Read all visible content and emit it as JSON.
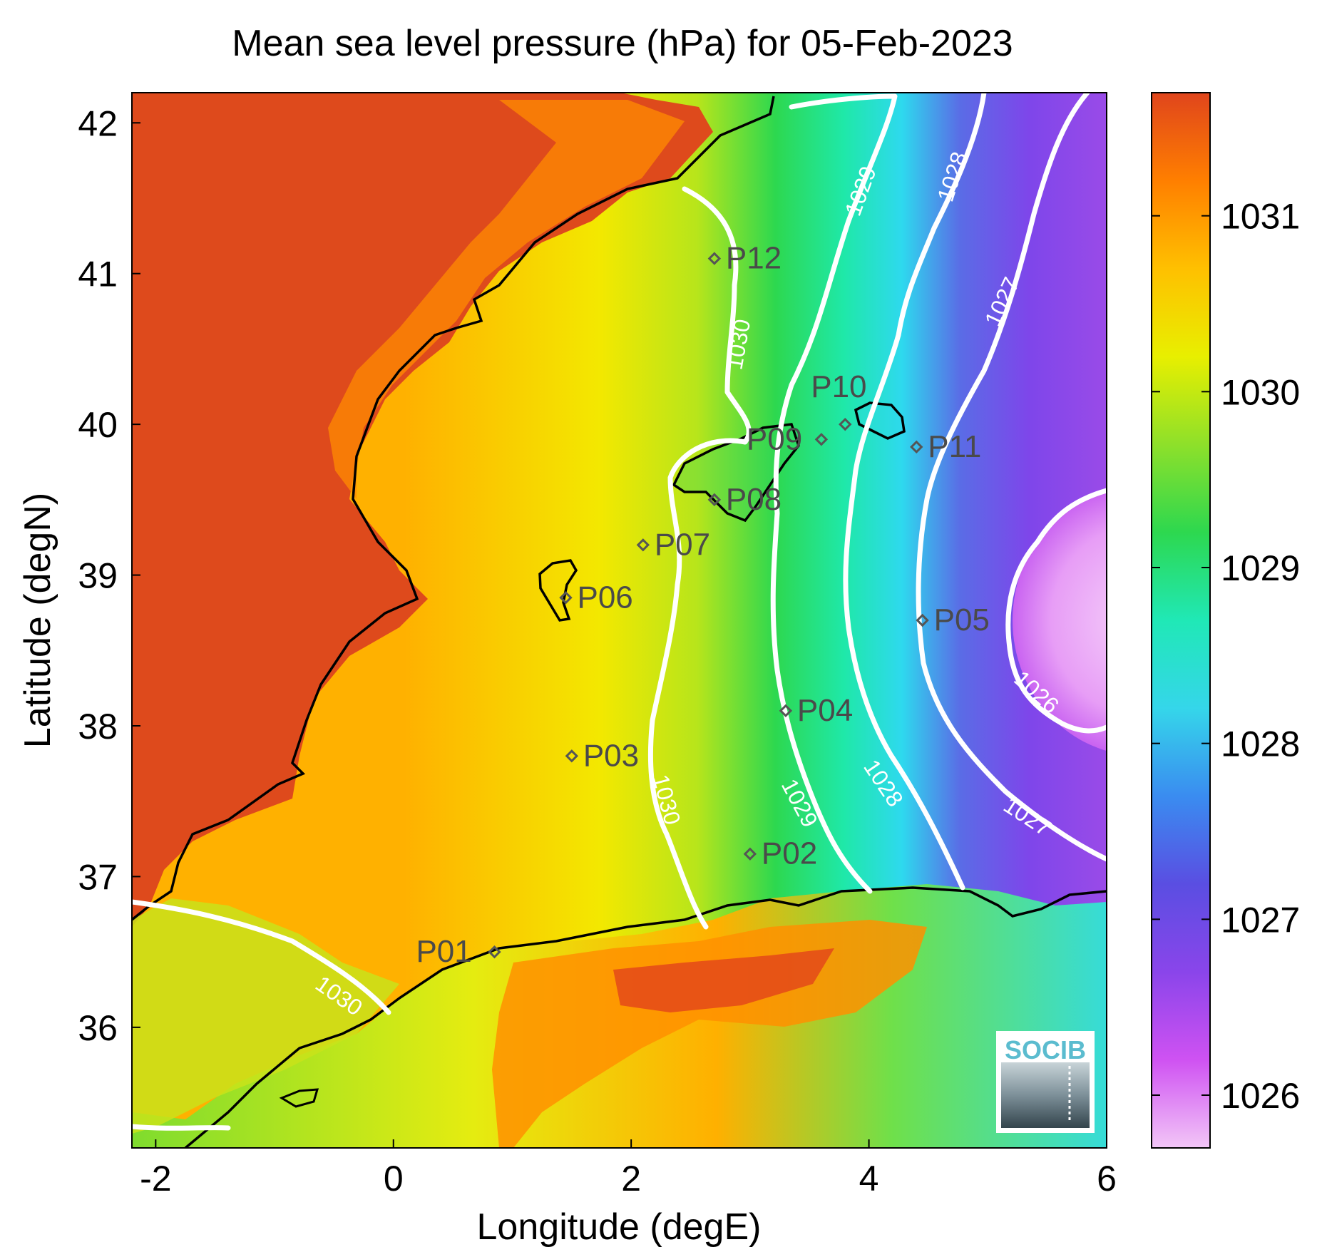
{
  "title": "Mean sea level pressure (hPa) for 05-Feb-2023",
  "xlabel": "Longitude (degE)",
  "ylabel": "Latitude (degN)",
  "x_ticks": [
    "-2",
    "0",
    "2",
    "4",
    "6"
  ],
  "y_ticks": [
    "42",
    "41",
    "40",
    "39",
    "38",
    "37",
    "36"
  ],
  "colorbar": {
    "ticks": [
      "1031",
      "1030",
      "1029",
      "1028",
      "1027",
      "1026"
    ],
    "colors": [
      "#f2c6f7",
      "#cf52f2",
      "#8a45ea",
      "#5a4ee2",
      "#3a8cf0",
      "#35d6ea",
      "#20e8b6",
      "#2dd84f",
      "#8ee02a",
      "#e8ef00",
      "#ffc000",
      "#ff7f00",
      "#e0451c"
    ]
  },
  "logo": {
    "text": "SOCIB"
  },
  "contours": [
    {
      "label": "1030",
      "color": "#ffffff"
    },
    {
      "label": "1029",
      "color": "#ffffff"
    },
    {
      "label": "1028",
      "color": "#ffffff"
    },
    {
      "label": "1027",
      "color": "#ffffff"
    },
    {
      "label": "1026",
      "color": "#ffffff"
    }
  ],
  "chart_data": {
    "type": "heatmap",
    "title": "Mean sea level pressure (hPa) for 05-Feb-2023",
    "xlabel": "Longitude (degE)",
    "ylabel": "Latitude (degN)",
    "xlim": [
      -2.2,
      6.0
    ],
    "ylim": [
      35.2,
      42.2
    ],
    "color_range": [
      1025.7,
      1031.7
    ],
    "points": [
      {
        "label": "P01",
        "lon": 0.85,
        "lat": 36.5
      },
      {
        "label": "P02",
        "lon": 3.0,
        "lat": 37.15
      },
      {
        "label": "P03",
        "lon": 1.5,
        "lat": 37.8
      },
      {
        "label": "P04",
        "lon": 3.3,
        "lat": 38.1
      },
      {
        "label": "P05",
        "lon": 4.45,
        "lat": 38.7
      },
      {
        "label": "P06",
        "lon": 1.45,
        "lat": 38.85
      },
      {
        "label": "P07",
        "lon": 2.1,
        "lat": 39.2
      },
      {
        "label": "P08",
        "lon": 2.7,
        "lat": 39.5
      },
      {
        "label": "P09",
        "lon": 3.6,
        "lat": 39.9
      },
      {
        "label": "P10",
        "lon": 3.8,
        "lat": 40.0
      },
      {
        "label": "P11",
        "lon": 4.4,
        "lat": 39.85
      },
      {
        "label": "P12",
        "lon": 2.7,
        "lat": 41.1
      }
    ],
    "contour_levels": [
      {
        "level": 1030,
        "path_lonlat": [
          [
            2.3,
            41.3
          ],
          [
            2.75,
            41.0
          ],
          [
            2.8,
            40.3
          ],
          [
            2.85,
            39.85
          ],
          [
            2.3,
            39.6
          ],
          [
            2.4,
            39.0
          ],
          [
            2.35,
            38.0
          ],
          [
            2.25,
            37.4
          ],
          [
            2.5,
            36.7
          ]
        ]
      },
      {
        "level": 1030,
        "path_lonlat": [
          [
            -2.2,
            36.8
          ],
          [
            -1.5,
            36.7
          ],
          [
            -0.5,
            36.5
          ],
          [
            0.1,
            36.0
          ]
        ]
      },
      {
        "level": 1029,
        "path_lonlat": [
          [
            3.3,
            42.0
          ],
          [
            4.2,
            42.1
          ],
          [
            3.85,
            40.9
          ],
          [
            3.3,
            39.8
          ],
          [
            3.3,
            38.7
          ],
          [
            3.4,
            37.6
          ],
          [
            4.0,
            37.0
          ]
        ]
      },
      {
        "level": 1028,
        "path_lonlat": [
          [
            4.9,
            42.0
          ],
          [
            4.5,
            41.3
          ],
          [
            4.2,
            40.7
          ],
          [
            3.95,
            39.5
          ],
          [
            4.1,
            38.4
          ],
          [
            4.8,
            37.1
          ]
        ]
      },
      {
        "level": 1027,
        "path_lonlat": [
          [
            5.9,
            42.0
          ],
          [
            5.3,
            41.0
          ],
          [
            4.7,
            39.8
          ],
          [
            4.5,
            38.6
          ],
          [
            5.0,
            37.6
          ],
          [
            6.0,
            36.8
          ]
        ]
      },
      {
        "level": 1026,
        "path_lonlat": [
          [
            6.0,
            39.5
          ],
          [
            5.3,
            39.0
          ],
          [
            5.3,
            38.4
          ],
          [
            6.0,
            38.0
          ]
        ]
      }
    ],
    "contour_labels_on_map": [
      "1030",
      "1030",
      "1030",
      "1029",
      "1029",
      "1028",
      "1028",
      "1027",
      "1027",
      "1026"
    ]
  }
}
